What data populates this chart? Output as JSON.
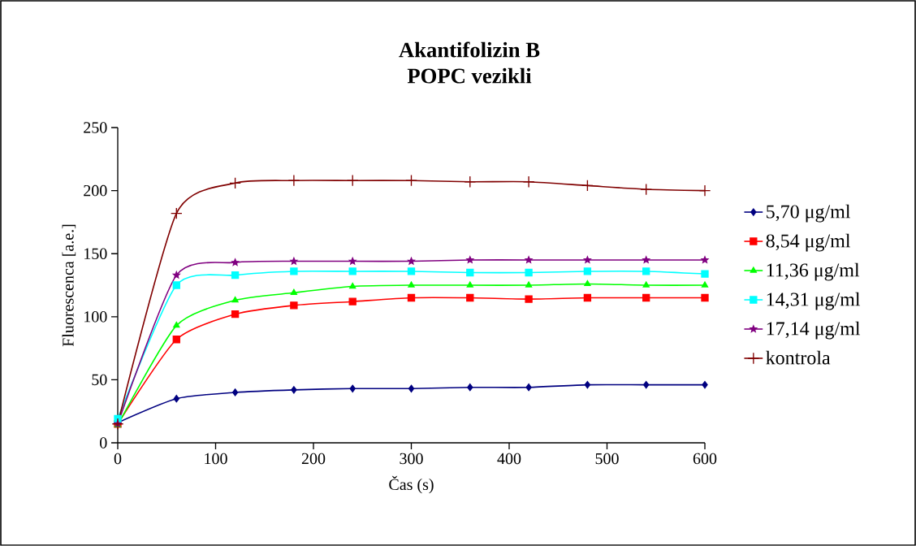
{
  "chart_data": {
    "type": "line",
    "title": "Akantifolizin B\nPOPC vezikli",
    "xlabel": "Čas (s)",
    "ylabel": "Fluorescenca [a.e.]",
    "x": [
      0,
      60,
      120,
      180,
      240,
      300,
      360,
      420,
      480,
      540,
      600
    ],
    "xlim": [
      0,
      600
    ],
    "ylim": [
      0,
      250
    ],
    "xticks": [
      0,
      100,
      200,
      300,
      400,
      500,
      600
    ],
    "yticks": [
      0,
      50,
      100,
      150,
      200,
      250
    ],
    "grid": false,
    "legend": "right",
    "line_style": "solid",
    "series": [
      {
        "name": "5,70 μg/ml",
        "color": "#000080",
        "marker": "diamond",
        "values": [
          16,
          35,
          40,
          42,
          43,
          43,
          44,
          44,
          46,
          46,
          46
        ]
      },
      {
        "name": "8,54 μg/ml",
        "color": "#ff0000",
        "marker": "square",
        "values": [
          15,
          82,
          102,
          109,
          112,
          115,
          115,
          114,
          115,
          115,
          115
        ]
      },
      {
        "name": "11,36 μg/ml",
        "color": "#00ff00",
        "marker": "triangle",
        "values": [
          14,
          93,
          113,
          119,
          124,
          125,
          125,
          125,
          126,
          125,
          125
        ]
      },
      {
        "name": "14,31 μg/ml",
        "color": "#00ffff",
        "marker": "square",
        "values": [
          19,
          125,
          133,
          136,
          136,
          136,
          135,
          135,
          136,
          136,
          134
        ]
      },
      {
        "name": "17,14 μg/ml",
        "color": "#800080",
        "marker": "star",
        "values": [
          15,
          133,
          143,
          144,
          144,
          144,
          145,
          145,
          145,
          145,
          145
        ]
      },
      {
        "name": "kontrola",
        "color": "#800000",
        "marker": "cross",
        "values": [
          15,
          182,
          206,
          208,
          208,
          208,
          207,
          207,
          204,
          201,
          200
        ]
      }
    ]
  }
}
